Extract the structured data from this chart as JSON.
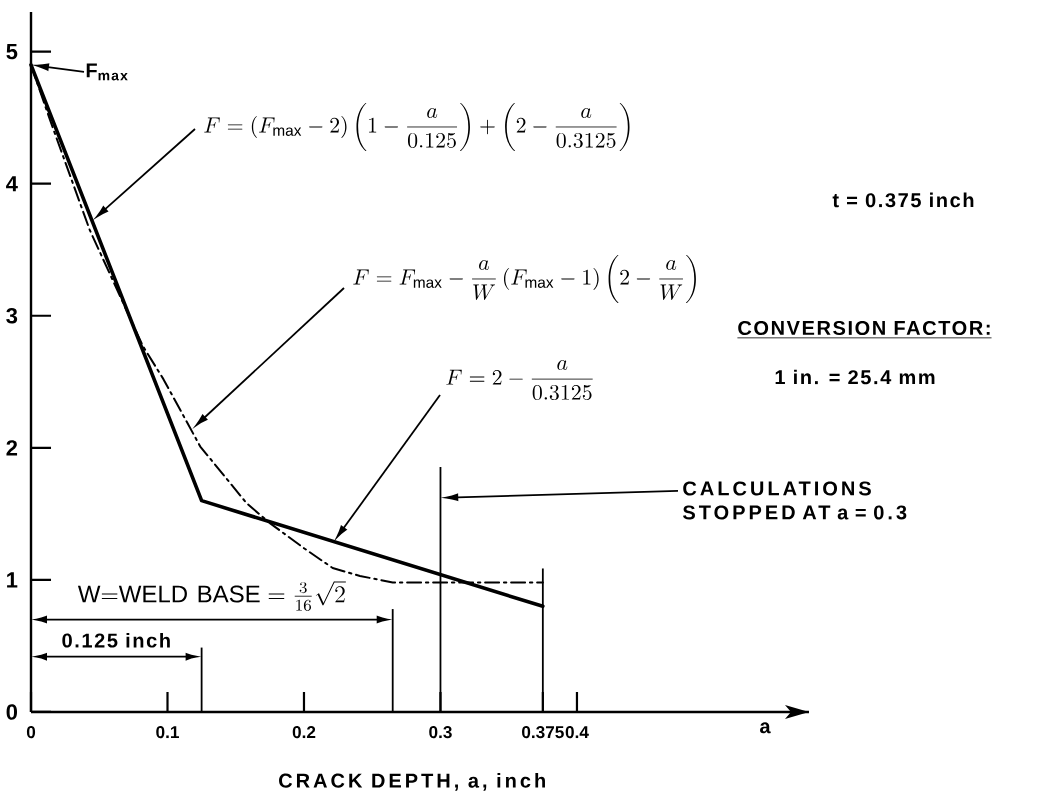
{
  "chart_data": {
    "type": "line",
    "xlabel": "CRACK DEPTH, a, inch",
    "series": [
      {
        "color": "#000000",
        "line_style": "solid",
        "x": [
          0,
          0.125,
          0.375
        ],
        "values": [
          4.9,
          1.6,
          0.8
        ]
      },
      {
        "color": "#000000",
        "line_style": "dashdot",
        "x": [
          0,
          0.014,
          0.043,
          0.082,
          0.097,
          0.124,
          0.158,
          0.175,
          0.2,
          0.221,
          0.241,
          0.265,
          0.375
        ],
        "values": [
          4.9,
          4.48,
          3.65,
          2.77,
          2.52,
          2.01,
          1.58,
          1.43,
          1.24,
          1.09,
          1.03,
          0.98,
          0.98
        ]
      }
    ],
    "xlim": [
      0,
      0.57
    ],
    "ylim": [
      0,
      5.3
    ],
    "xticks": [
      0,
      0.1,
      0.2,
      0.3,
      0.375,
      0.4
    ],
    "yticks": [
      0,
      1,
      2,
      3,
      4,
      5
    ],
    "ref_lines": [
      {
        "axis": "x",
        "value": 0.125,
        "label": "0.125 inch"
      },
      {
        "axis": "x",
        "value": 0.265,
        "label": "\\mathrm{W{=}WELD\\ BASE} = \\frac{3}{16}\\sqrt{2}"
      },
      {
        "axis": "x",
        "value": 0.3
      },
      {
        "axis": "x",
        "value": 0.375
      }
    ],
    "annotations": [
      {
        "text": "F$_{max}$",
        "x": 0,
        "y": 4.9
      },
      "F = \\left(F_{\\mathrm{max}}-2\\right)\\left(1-\\frac{a}{0.125}\\right)+\\left(2-\\frac{a}{0.3125}\\right)",
      "F = F_{\\mathrm{max}}-\\frac{a}{W}\\left(F_{\\mathrm{max}}-1\\right)\\left(2-\\frac{a}{W}\\right)",
      "F = 2-\\frac{a}{0.3125}",
      "CALCULATIONS STOPPED AT a = 0.3",
      "t = 0.375 inch",
      "CONVERSION FACTOR:",
      "1 in. = 25.4 mm",
      "a"
    ]
  }
}
